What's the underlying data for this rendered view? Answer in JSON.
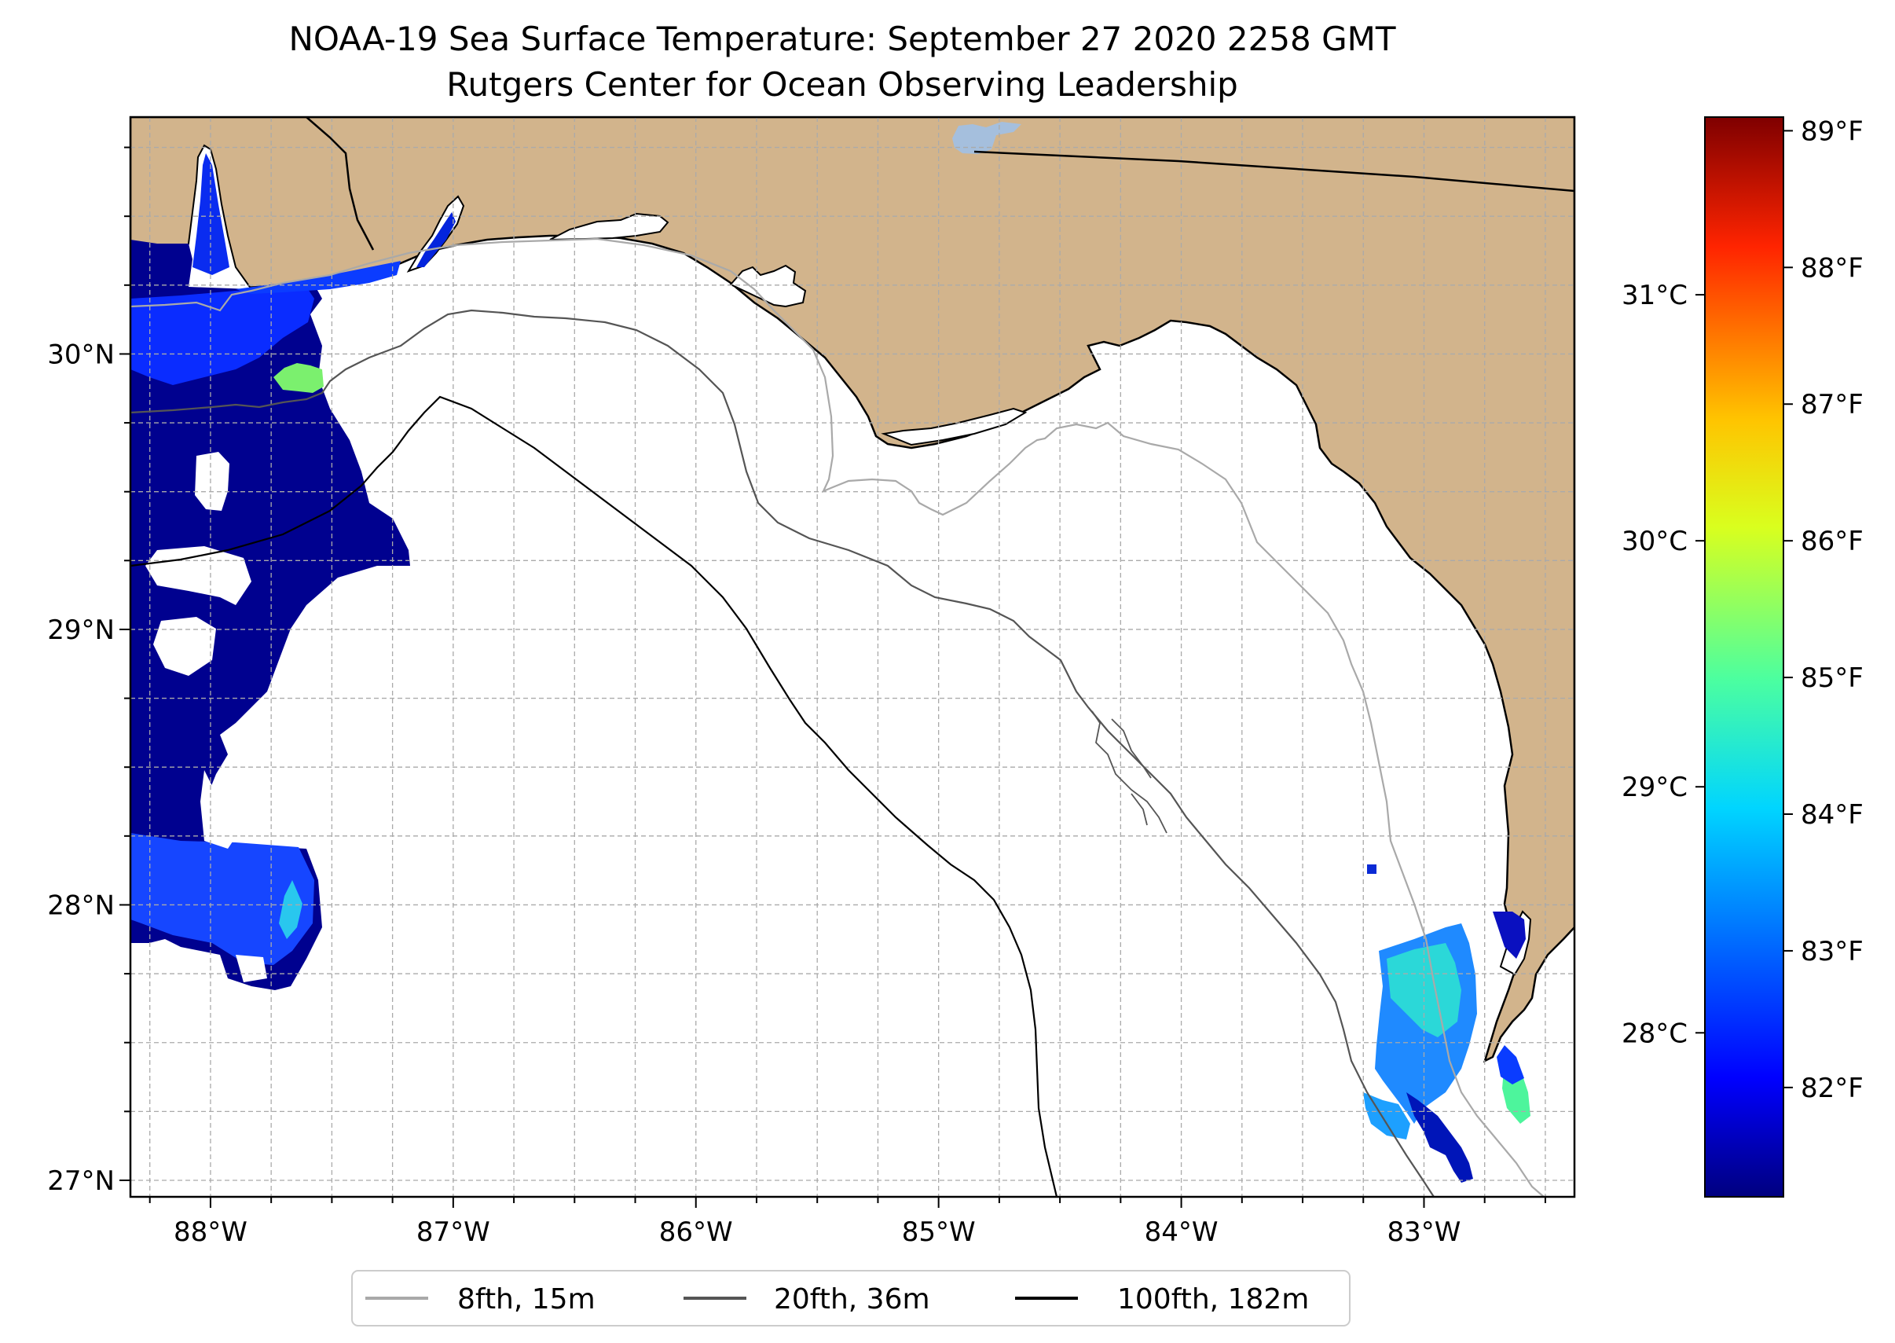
{
  "title": "NOAA-19 Sea Surface Temperature: September 27 2020 2258 GMT",
  "subtitle": "Rutgers Center for Ocean Observing Leadership",
  "map": {
    "lon_range": [
      -88.33,
      -82.38
    ],
    "lat_range": [
      26.94,
      30.86
    ],
    "lon_ticks": [
      {
        "value": -88,
        "label": "88°W"
      },
      {
        "value": -87,
        "label": "87°W"
      },
      {
        "value": -86,
        "label": "86°W"
      },
      {
        "value": -85,
        "label": "85°W"
      },
      {
        "value": -84,
        "label": "84°W"
      },
      {
        "value": -83,
        "label": "83°W"
      }
    ],
    "lat_ticks": [
      {
        "value": 27,
        "label": "27°N"
      },
      {
        "value": 28,
        "label": "28°N"
      },
      {
        "value": 29,
        "label": "29°N"
      },
      {
        "value": 30,
        "label": "30°N"
      }
    ],
    "grid": "dashed, every 0.25°",
    "land_color": "#d2b48c",
    "ocean_color": "#ffffff",
    "lake_color": "#a5bfdd"
  },
  "colorbar": {
    "cmap": "jet",
    "range_f": [
      81.2,
      89.1
    ],
    "f_ticks": [
      {
        "value": 82,
        "label": "82°F"
      },
      {
        "value": 83,
        "label": "83°F"
      },
      {
        "value": 84,
        "label": "84°F"
      },
      {
        "value": 85,
        "label": "85°F"
      },
      {
        "value": 86,
        "label": "86°F"
      },
      {
        "value": 87,
        "label": "87°F"
      },
      {
        "value": 88,
        "label": "88°F"
      },
      {
        "value": 89,
        "label": "89°F"
      }
    ],
    "c_ticks": [
      {
        "value": 28,
        "label": "28°C"
      },
      {
        "value": 29,
        "label": "29°C"
      },
      {
        "value": 30,
        "label": "30°C"
      },
      {
        "value": 31,
        "label": "31°C"
      }
    ]
  },
  "legend": {
    "placement": "bottom-center",
    "items": [
      {
        "label": "8fth, 15m",
        "color": "#a9a9a9"
      },
      {
        "label": "20fth, 36m",
        "color": "#555555"
      },
      {
        "label": "100fth, 182m",
        "color": "#000000"
      }
    ]
  }
}
